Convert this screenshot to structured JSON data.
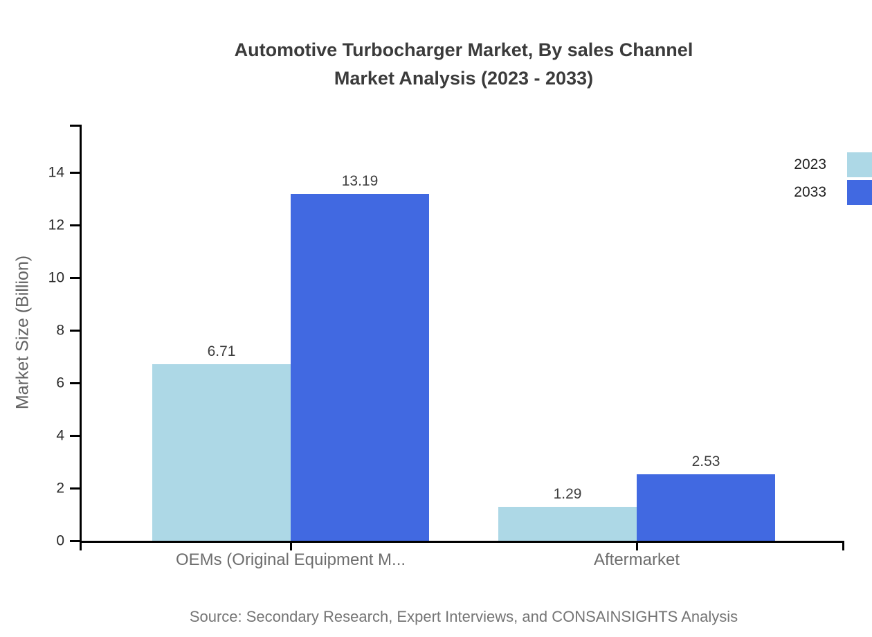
{
  "header": {
    "title_line1": "Automotive Turbocharger Market, By sales Channel",
    "title_line2": "Market Analysis (2023 - 2033)"
  },
  "colors": {
    "series_2023": "#ADD8E6",
    "series_2033": "#4169E1",
    "axis": "#000000",
    "title_text": "#3b3b3b",
    "muted_text": "#6e6e6e"
  },
  "chart_data": {
    "type": "bar",
    "title": "Automotive Turbocharger Market, By sales Channel Market Analysis (2023 - 2033)",
    "title_lines": [
      "Automotive Turbocharger Market, By sales Channel",
      "Market Analysis (2023 - 2033)"
    ],
    "xlabel": "",
    "ylabel": "Market Size (Billion)",
    "categories": [
      "OEMs (Original Equipment M...",
      "Aftermarket"
    ],
    "series": [
      {
        "name": "2023",
        "color": "#ADD8E6",
        "values": [
          6.71,
          1.29
        ],
        "value_labels": [
          "6.71",
          "1.29"
        ]
      },
      {
        "name": "2033",
        "color": "#4169E1",
        "values": [
          13.19,
          2.53
        ],
        "value_labels": [
          "13.19",
          "2.53"
        ]
      }
    ],
    "yticks": [
      0,
      2,
      4,
      6,
      8,
      10,
      12,
      14
    ],
    "ylim": [
      0,
      15.8
    ],
    "grid": false,
    "legend": {
      "position": "top-right",
      "entries": [
        "2023",
        "2033"
      ]
    },
    "source": "Source: Secondary Research, Expert Interviews, and CONSAINSIGHTS Analysis"
  }
}
